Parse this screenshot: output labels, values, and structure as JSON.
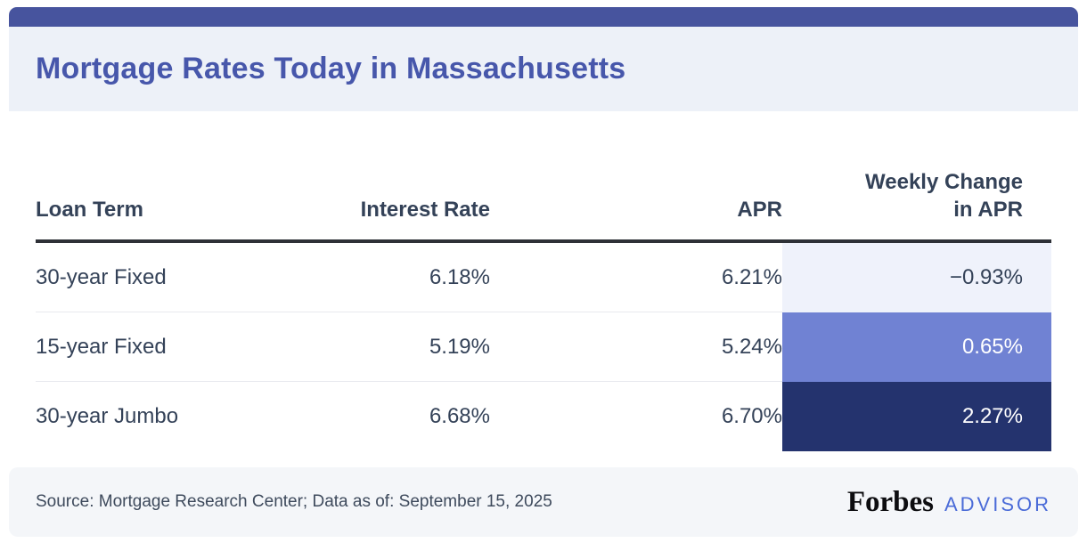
{
  "header": {
    "title": "Mortgage Rates Today in Massachusetts"
  },
  "colors": {
    "top_bar": "#47549e",
    "header_bg": "#edf1f8",
    "title_text": "#4757ab",
    "table_text": "#344258",
    "header_rule": "#2e3137",
    "row_separator": "#e8e9ee",
    "footer_bg": "#f4f6f9",
    "advisor_blue": "#4a6bd8"
  },
  "table": {
    "headers": {
      "loan_term": "Loan Term",
      "interest_rate": "Interest Rate",
      "apr": "APR",
      "weekly_line1": "Weekly Change",
      "weekly_line2": "in APR"
    },
    "rows": [
      {
        "loan_term": "30-year Fixed",
        "interest_rate": "6.18%",
        "apr": "6.21%",
        "weekly_change": "−0.93%",
        "cell_bg": "#eff2fb",
        "cell_text": "#344258"
      },
      {
        "loan_term": "15-year Fixed",
        "interest_rate": "5.19%",
        "apr": "5.24%",
        "weekly_change": "0.65%",
        "cell_bg": "#7082d3",
        "cell_text": "#ffffff"
      },
      {
        "loan_term": "30-year Jumbo",
        "interest_rate": "6.68%",
        "apr": "6.70%",
        "weekly_change": "2.27%",
        "cell_bg": "#24336e",
        "cell_text": "#ffffff"
      }
    ]
  },
  "footer": {
    "source": "Source: Mortgage Research Center; Data as of: September 15, 2025",
    "brand": "Forbes",
    "brand_suffix": "ADVISOR"
  },
  "chart_data": {
    "type": "table",
    "title": "Mortgage Rates Today in Massachusetts",
    "columns": [
      "Loan Term",
      "Interest Rate",
      "APR",
      "Weekly Change in APR"
    ],
    "rows": [
      [
        "30-year Fixed",
        6.18,
        6.21,
        -0.93
      ],
      [
        "15-year Fixed",
        5.19,
        5.24,
        0.65
      ],
      [
        "30-year Jumbo",
        6.68,
        6.7,
        2.27
      ]
    ],
    "units": "%",
    "source_note": "Source: Mortgage Research Center; Data as of: September 15, 2025"
  }
}
